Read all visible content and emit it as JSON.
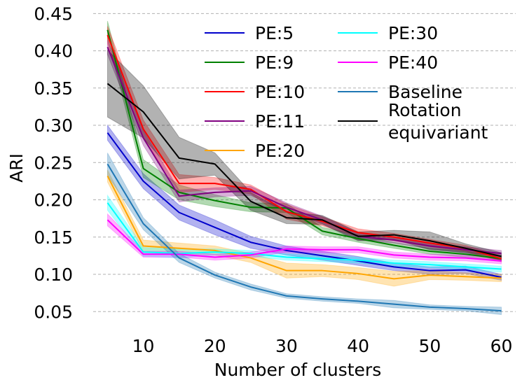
{
  "chart_data": {
    "type": "line",
    "title": "",
    "xlabel": "Number of clusters",
    "ylabel": "ARI",
    "xlim": [
      3,
      62
    ],
    "ylim": [
      0.023,
      0.455
    ],
    "grid": "y-dashed",
    "legend_position": "top-right",
    "legend_columns": 2,
    "x_ticks": [
      10,
      20,
      30,
      40,
      50,
      60
    ],
    "y_ticks": [
      0.05,
      0.1,
      0.15,
      0.2,
      0.25,
      0.3,
      0.35,
      0.4,
      0.45
    ],
    "y_tick_labels": [
      "0.05",
      "0.10",
      "0.15",
      "0.20",
      "0.25",
      "0.30",
      "0.35",
      "0.40",
      "0.45"
    ],
    "x": [
      5,
      10,
      15,
      20,
      25,
      30,
      35,
      40,
      45,
      50,
      55,
      60
    ],
    "series": [
      {
        "name": "PE:5",
        "color": "#0000cc",
        "values": [
          0.29,
          0.225,
          0.183,
          0.163,
          0.143,
          0.132,
          0.125,
          0.118,
          0.11,
          0.105,
          0.106,
          0.096
        ],
        "err": [
          0.01,
          0.01,
          0.01,
          0.01,
          0.008,
          0.006,
          0.006,
          0.006,
          0.005,
          0.005,
          0.005,
          0.004
        ]
      },
      {
        "name": "PE:9",
        "color": "#008000",
        "values": [
          0.428,
          0.242,
          0.21,
          0.199,
          0.19,
          0.189,
          0.158,
          0.148,
          0.139,
          0.131,
          0.127,
          0.121
        ],
        "err": [
          0.012,
          0.012,
          0.01,
          0.008,
          0.006,
          0.006,
          0.005,
          0.005,
          0.004,
          0.004,
          0.004,
          0.004
        ]
      },
      {
        "name": "PE:10",
        "color": "#ff0000",
        "values": [
          0.421,
          0.295,
          0.222,
          0.222,
          0.214,
          0.184,
          0.171,
          0.156,
          0.15,
          0.142,
          0.135,
          0.121
        ],
        "err": [
          0.012,
          0.012,
          0.012,
          0.008,
          0.006,
          0.01,
          0.006,
          0.005,
          0.005,
          0.005,
          0.004,
          0.004
        ]
      },
      {
        "name": "PE:11",
        "color": "#800080",
        "values": [
          0.405,
          0.283,
          0.205,
          0.21,
          0.212,
          0.19,
          0.173,
          0.151,
          0.146,
          0.138,
          0.133,
          0.128
        ],
        "err": [
          0.01,
          0.01,
          0.008,
          0.006,
          0.006,
          0.006,
          0.005,
          0.005,
          0.004,
          0.004,
          0.004,
          0.004
        ]
      },
      {
        "name": "PE:20",
        "color": "#ffa500",
        "values": [
          0.232,
          0.138,
          0.135,
          0.132,
          0.122,
          0.105,
          0.105,
          0.101,
          0.094,
          0.099,
          0.097,
          0.095
        ],
        "err": [
          0.008,
          0.008,
          0.007,
          0.006,
          0.006,
          0.01,
          0.008,
          0.008,
          0.01,
          0.006,
          0.005,
          0.005
        ]
      },
      {
        "name": "PE:30",
        "color": "#00ffff",
        "values": [
          0.196,
          0.13,
          0.128,
          0.13,
          0.128,
          0.123,
          0.121,
          0.119,
          0.115,
          0.113,
          0.11,
          0.107
        ],
        "err": [
          0.01,
          0.006,
          0.006,
          0.004,
          0.004,
          0.004,
          0.004,
          0.004,
          0.004,
          0.004,
          0.004,
          0.004
        ]
      },
      {
        "name": "PE:40",
        "color": "#ff00ff",
        "values": [
          0.173,
          0.127,
          0.127,
          0.123,
          0.126,
          0.134,
          0.133,
          0.133,
          0.126,
          0.123,
          0.122,
          0.118
        ],
        "err": [
          0.008,
          0.004,
          0.004,
          0.004,
          0.004,
          0.004,
          0.004,
          0.004,
          0.004,
          0.004,
          0.004,
          0.004
        ]
      },
      {
        "name": "Baseline",
        "color": "#1f77b4",
        "values": [
          0.248,
          0.168,
          0.122,
          0.099,
          0.083,
          0.071,
          0.067,
          0.064,
          0.06,
          0.056,
          0.054,
          0.051
        ],
        "err": [
          0.015,
          0.008,
          0.006,
          0.004,
          0.004,
          0.003,
          0.003,
          0.003,
          0.005,
          0.003,
          0.003,
          0.005
        ]
      },
      {
        "name": "Rotation equivariant",
        "legend_lines": [
          "Rotation",
          "equivariant"
        ],
        "color": "#000000",
        "values": [
          0.356,
          0.318,
          0.256,
          0.248,
          0.198,
          0.176,
          0.173,
          0.151,
          0.153,
          0.145,
          0.135,
          0.124
        ],
        "err": [
          0.045,
          0.035,
          0.028,
          0.015,
          0.012,
          0.008,
          0.006,
          0.006,
          0.006,
          0.012,
          0.006,
          0.005
        ]
      }
    ]
  }
}
